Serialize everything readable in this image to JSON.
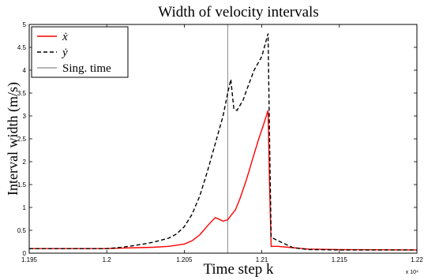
{
  "chart_data": {
    "type": "line",
    "title": "Width of velocity intervals",
    "xlabel": "Time step k",
    "ylabel": "Interval width (m/s)",
    "x_multiplier_label": "x 10⁴",
    "xlim": [
      1.195,
      1.22
    ],
    "ylim": [
      0,
      5
    ],
    "x_ticks": [
      "1.195",
      "1.2",
      "1.205",
      "1.21",
      "1.215",
      "1.22"
    ],
    "x_tick_values": [
      1.195,
      1.2,
      1.205,
      1.21,
      1.215,
      1.22
    ],
    "y_ticks": [
      "0",
      "0.5",
      "1",
      "1.5",
      "2",
      "2.5",
      "3",
      "3.5",
      "4",
      "4.5",
      "5"
    ],
    "y_tick_values": [
      0,
      0.5,
      1,
      1.5,
      2,
      2.5,
      3,
      3.5,
      4,
      4.5,
      5
    ],
    "grid": false,
    "legend_position": "top-left",
    "series": [
      {
        "name": "ẋ",
        "color": "#ff0000",
        "style": "solid",
        "x": [
          1.195,
          1.2,
          1.201,
          1.202,
          1.203,
          1.204,
          1.205,
          1.2055,
          1.206,
          1.2065,
          1.207,
          1.2072,
          1.2075,
          1.2078,
          1.208,
          1.2083,
          1.2086,
          1.209,
          1.2094,
          1.2098,
          1.2101,
          1.2104,
          1.2105,
          1.2106,
          1.211,
          1.212,
          1.213,
          1.215,
          1.22
        ],
        "y": [
          0.1,
          0.1,
          0.11,
          0.12,
          0.13,
          0.15,
          0.2,
          0.27,
          0.4,
          0.6,
          0.78,
          0.75,
          0.7,
          0.73,
          0.82,
          0.95,
          1.2,
          1.6,
          2.05,
          2.5,
          2.8,
          3.12,
          1.5,
          0.15,
          0.15,
          0.12,
          0.09,
          0.08,
          0.07
        ]
      },
      {
        "name": "ẏ",
        "color": "#000000",
        "style": "dashed",
        "x": [
          1.195,
          1.2,
          1.201,
          1.202,
          1.203,
          1.204,
          1.2045,
          1.205,
          1.2055,
          1.206,
          1.2065,
          1.207,
          1.2075,
          1.2078,
          1.208,
          1.2082,
          1.2084,
          1.2088,
          1.209,
          1.2095,
          1.21,
          1.2104,
          1.2105,
          1.2106,
          1.211,
          1.2115,
          1.212,
          1.213,
          1.215,
          1.22
        ],
        "y": [
          0.1,
          0.1,
          0.13,
          0.18,
          0.24,
          0.33,
          0.42,
          0.58,
          0.85,
          1.25,
          1.8,
          2.4,
          3.0,
          3.5,
          3.8,
          3.15,
          3.12,
          3.35,
          3.55,
          4.0,
          4.3,
          4.8,
          2.5,
          0.35,
          0.28,
          0.2,
          0.12,
          0.08,
          0.07,
          0.07
        ]
      }
    ],
    "vertical_line": {
      "name": "Sing. time",
      "x": 1.2078,
      "color": "#888888"
    }
  }
}
